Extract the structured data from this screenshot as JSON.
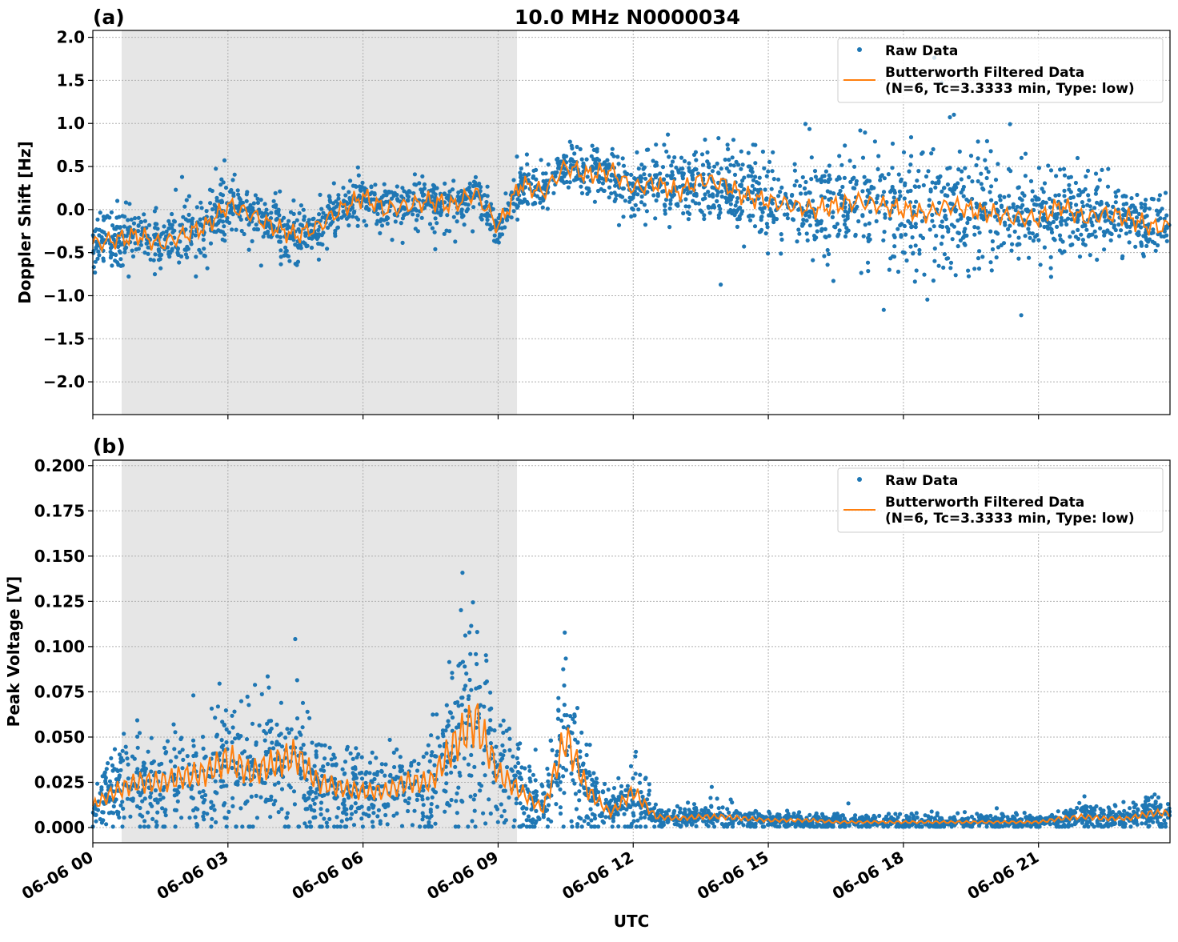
{
  "chart_data": [
    {
      "panel_label": "(a)",
      "title": "10.0 MHz N0000034",
      "type": "scatter",
      "ylabel": "Doppler Shift [Hz]",
      "xlabel": "",
      "ylim": [
        -2.38,
        2.08
      ],
      "xlim_hours": [
        0,
        23.92
      ],
      "yticks": [
        2.0,
        1.5,
        1.0,
        0.5,
        0.0,
        -0.5,
        -1.0,
        -1.5,
        -2.0
      ],
      "ytick_labels": [
        "2.0",
        "1.5",
        "1.0",
        "0.5",
        "0.0",
        "−0.5",
        "−1.0",
        "−1.5",
        "−2.0"
      ],
      "shaded_hours": [
        0.64,
        9.42
      ],
      "grid": true,
      "legend": {
        "placement": "top-right",
        "entries": [
          "Raw Data",
          "Butterworth Filtered Data",
          "(N=6, Tc=3.3333 min, Type: low)"
        ]
      },
      "series": [
        {
          "name": "Raw Data",
          "kind": "scatter",
          "color": "#1f77b4",
          "spread": [
            0.25,
            0.25,
            0.25,
            0.3,
            0.3,
            0.35,
            0.35,
            0.3,
            0.3,
            0.3,
            0.25,
            0.25,
            0.25,
            0.25,
            0.25,
            0.25,
            0.25,
            0.2,
            0.2,
            0.2,
            0.2,
            0.2,
            0.3,
            0.3,
            0.3,
            0.3,
            0.35,
            0.4,
            0.4,
            0.45,
            0.45,
            0.45,
            0.5,
            0.5,
            0.5,
            0.6,
            0.65,
            0.7,
            0.7,
            0.7,
            0.6,
            0.5,
            0.45,
            0.45,
            0.4,
            0.35,
            0.3,
            0.3
          ]
        },
        {
          "name": "Butterworth Filtered Data",
          "kind": "line",
          "color": "#ff7f0e",
          "x_hours_step": 0.5,
          "values": [
            -0.4,
            -0.35,
            -0.3,
            -0.4,
            -0.3,
            -0.2,
            0.05,
            -0.05,
            -0.2,
            -0.3,
            -0.2,
            0.0,
            0.15,
            0.0,
            0.05,
            0.1,
            0.05,
            0.2,
            -0.2,
            0.3,
            0.2,
            0.5,
            0.4,
            0.45,
            0.25,
            0.3,
            0.2,
            0.35,
            0.3,
            0.15,
            0.1,
            0.05,
            0.0,
            0.05,
            0.1,
            0.05,
            0.0,
            -0.05,
            0.05,
            0.0,
            -0.05,
            -0.1,
            -0.1,
            0.05,
            -0.1,
            -0.05,
            -0.1,
            -0.2
          ]
        }
      ]
    },
    {
      "panel_label": "(b)",
      "type": "scatter",
      "ylabel": "Peak Voltage [V]",
      "xlabel": "UTC",
      "ylim": [
        -0.0084,
        0.203
      ],
      "xlim_hours": [
        0,
        23.92
      ],
      "yticks": [
        0.2,
        0.175,
        0.15,
        0.125,
        0.1,
        0.075,
        0.05,
        0.025,
        0.0
      ],
      "ytick_labels": [
        "0.200",
        "0.175",
        "0.150",
        "0.125",
        "0.100",
        "0.075",
        "0.050",
        "0.025",
        "0.000"
      ],
      "xtick_hours": [
        0,
        3,
        6,
        9,
        12,
        15,
        18,
        21
      ],
      "xtick_labels": [
        "06-06 00",
        "06-06 03",
        "06-06 06",
        "06-06 09",
        "06-06 12",
        "06-06 15",
        "06-06 18",
        "06-06 21"
      ],
      "shaded_hours": [
        0.64,
        9.42
      ],
      "grid": true,
      "legend": {
        "placement": "top-right",
        "entries": [
          "Raw Data",
          "Butterworth Filtered Data",
          "(N=6, Tc=3.3333 min, Type: low)"
        ]
      },
      "series": [
        {
          "name": "Raw Data",
          "kind": "scatter",
          "color": "#1f77b4",
          "spread_ratio": 0.55
        },
        {
          "name": "Butterworth Filtered Data",
          "kind": "line",
          "color": "#ff7f0e",
          "x_hours_step": 0.5,
          "values": [
            0.012,
            0.02,
            0.025,
            0.025,
            0.028,
            0.03,
            0.038,
            0.03,
            0.035,
            0.04,
            0.025,
            0.022,
            0.02,
            0.02,
            0.025,
            0.025,
            0.045,
            0.06,
            0.03,
            0.02,
            0.01,
            0.05,
            0.02,
            0.008,
            0.02,
            0.006,
            0.005,
            0.006,
            0.006,
            0.005,
            0.004,
            0.004,
            0.004,
            0.003,
            0.003,
            0.003,
            0.003,
            0.003,
            0.003,
            0.003,
            0.003,
            0.003,
            0.003,
            0.005,
            0.006,
            0.005,
            0.005,
            0.008
          ]
        }
      ]
    }
  ]
}
